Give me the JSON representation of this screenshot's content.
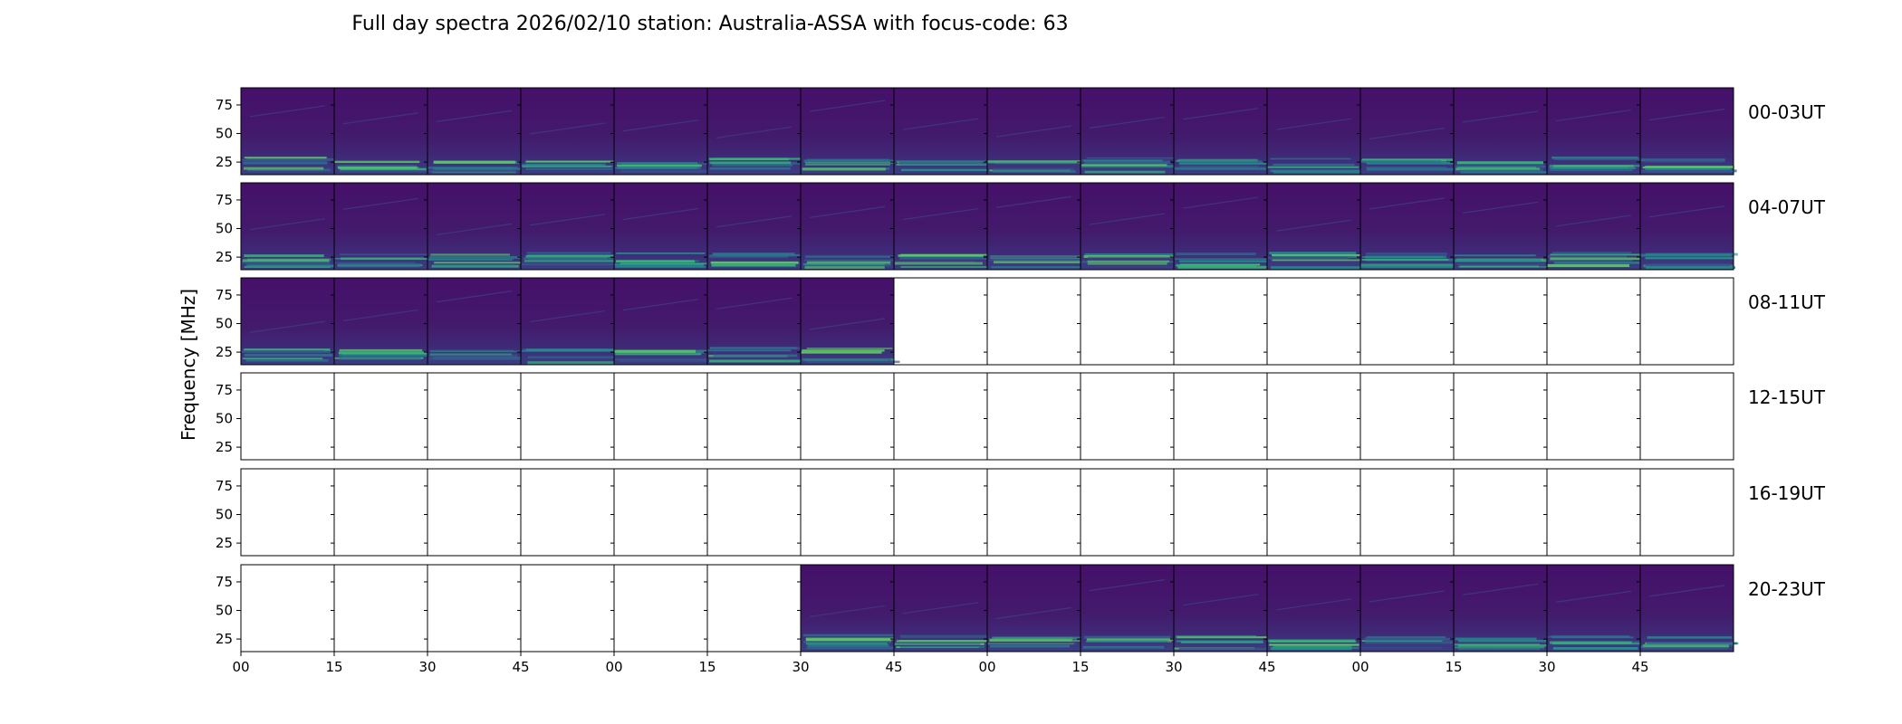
{
  "chart_data": {
    "type": "heatmap",
    "title": "Full day spectra 2026/02/10 station: Australia-ASSA with focus-code: 63",
    "ylabel": "Frequency [MHz]",
    "ylim": [
      14,
      90
    ],
    "yticks": [
      "25",
      "50",
      "75"
    ],
    "ytick_values": [
      25,
      50,
      75
    ],
    "xticks": [
      "00",
      "15",
      "30",
      "45",
      "00",
      "15",
      "30",
      "45",
      "00",
      "15",
      "30",
      "45",
      "00",
      "15",
      "30",
      "45"
    ],
    "rows": [
      {
        "label": "00-03UT",
        "filled": [
          1,
          1,
          1,
          1,
          1,
          1,
          1,
          1,
          1,
          1,
          1,
          1,
          1,
          1,
          1,
          1
        ]
      },
      {
        "label": "04-07UT",
        "filled": [
          1,
          1,
          1,
          1,
          1,
          1,
          1,
          1,
          1,
          1,
          1,
          1,
          1,
          1,
          1,
          1
        ]
      },
      {
        "label": "08-11UT",
        "filled": [
          1,
          1,
          1,
          1,
          1,
          1,
          1,
          0,
          0,
          0,
          0,
          0,
          0,
          0,
          0,
          0
        ]
      },
      {
        "label": "12-15UT",
        "filled": [
          0,
          0,
          0,
          0,
          0,
          0,
          0,
          0,
          0,
          0,
          0,
          0,
          0,
          0,
          0,
          0
        ]
      },
      {
        "label": "16-19UT",
        "filled": [
          0,
          0,
          0,
          0,
          0,
          0,
          0,
          0,
          0,
          0,
          0,
          0,
          0,
          0,
          0,
          0
        ]
      },
      {
        "label": "20-23UT",
        "filled": [
          0,
          0,
          0,
          0,
          0,
          0,
          1,
          1,
          1,
          1,
          1,
          1,
          1,
          1,
          1,
          1
        ]
      }
    ],
    "colormap": [
      "#440154",
      "#3b528b",
      "#21918c",
      "#5ec962",
      "#fde725"
    ]
  }
}
